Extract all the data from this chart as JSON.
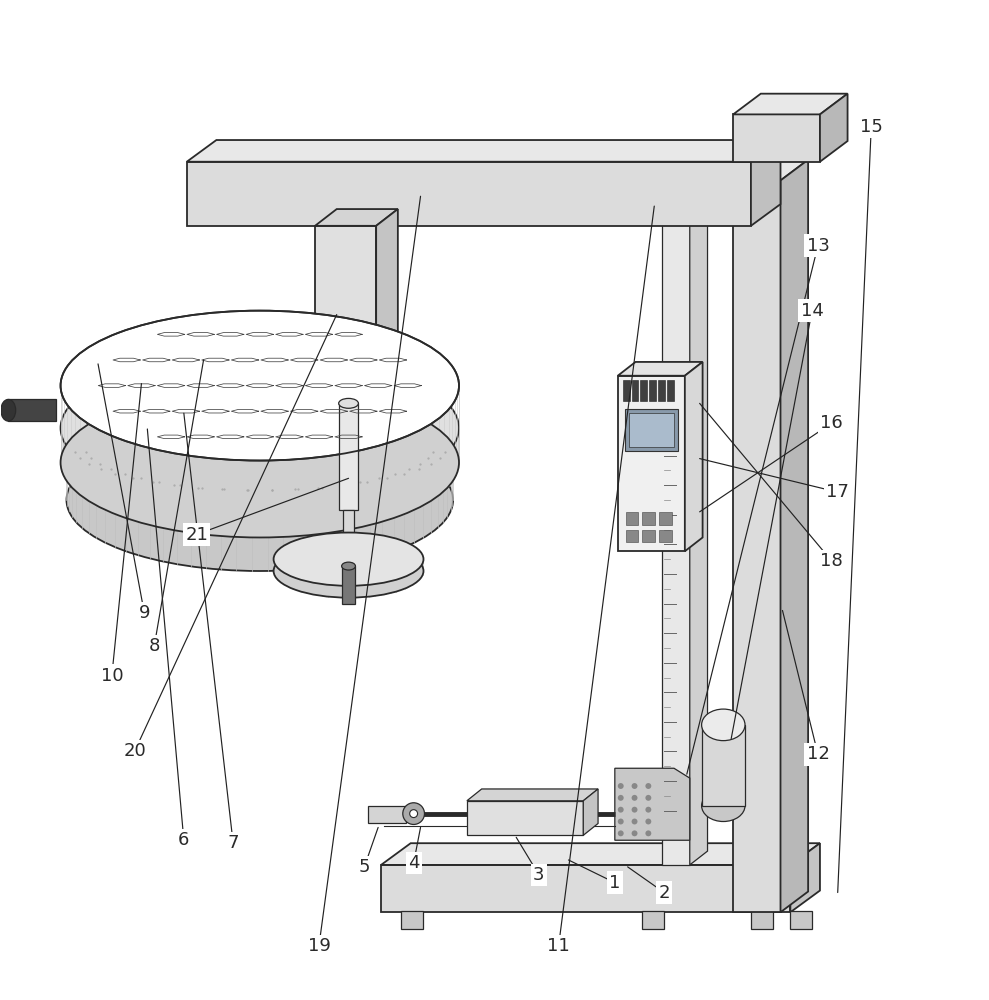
{
  "bg_color": "#ffffff",
  "line_color": "#2a2a2a",
  "label_color": "#2a2a2a",
  "label_fontsize": 13,
  "annotations": [
    {
      "label": "1",
      "lpos": [
        0.622,
        0.112
      ],
      "tpos": [
        0.575,
        0.135
      ]
    },
    {
      "label": "2",
      "lpos": [
        0.672,
        0.102
      ],
      "tpos": [
        0.635,
        0.128
      ]
    },
    {
      "label": "3",
      "lpos": [
        0.545,
        0.12
      ],
      "tpos": [
        0.522,
        0.158
      ]
    },
    {
      "label": "4",
      "lpos": [
        0.418,
        0.132
      ],
      "tpos": [
        0.425,
        0.168
      ]
    },
    {
      "label": "5",
      "lpos": [
        0.368,
        0.128
      ],
      "tpos": [
        0.382,
        0.168
      ]
    },
    {
      "label": "6",
      "lpos": [
        0.185,
        0.155
      ],
      "tpos": [
        0.148,
        0.572
      ]
    },
    {
      "label": "7",
      "lpos": [
        0.235,
        0.152
      ],
      "tpos": [
        0.185,
        0.588
      ]
    },
    {
      "label": "8",
      "lpos": [
        0.155,
        0.352
      ],
      "tpos": [
        0.205,
        0.642
      ]
    },
    {
      "label": "9",
      "lpos": [
        0.145,
        0.385
      ],
      "tpos": [
        0.098,
        0.638
      ]
    },
    {
      "label": "10",
      "lpos": [
        0.112,
        0.322
      ],
      "tpos": [
        0.142,
        0.618
      ]
    },
    {
      "label": "11",
      "lpos": [
        0.565,
        0.048
      ],
      "tpos": [
        0.662,
        0.798
      ]
    },
    {
      "label": "12",
      "lpos": [
        0.828,
        0.242
      ],
      "tpos": [
        0.792,
        0.388
      ]
    },
    {
      "label": "13",
      "lpos": [
        0.828,
        0.758
      ],
      "tpos": [
        0.695,
        0.222
      ]
    },
    {
      "label": "14",
      "lpos": [
        0.822,
        0.692
      ],
      "tpos": [
        0.74,
        0.258
      ]
    },
    {
      "label": "15",
      "lpos": [
        0.882,
        0.878
      ],
      "tpos": [
        0.848,
        0.102
      ]
    },
    {
      "label": "16",
      "lpos": [
        0.842,
        0.578
      ],
      "tpos": [
        0.708,
        0.488
      ]
    },
    {
      "label": "17",
      "lpos": [
        0.848,
        0.508
      ],
      "tpos": [
        0.708,
        0.542
      ]
    },
    {
      "label": "18",
      "lpos": [
        0.842,
        0.438
      ],
      "tpos": [
        0.708,
        0.598
      ]
    },
    {
      "label": "19",
      "lpos": [
        0.322,
        0.048
      ],
      "tpos": [
        0.425,
        0.808
      ]
    },
    {
      "label": "20",
      "lpos": [
        0.135,
        0.245
      ],
      "tpos": [
        0.34,
        0.688
      ]
    },
    {
      "label": "21",
      "lpos": [
        0.198,
        0.465
      ],
      "tpos": [
        0.352,
        0.522
      ]
    }
  ]
}
